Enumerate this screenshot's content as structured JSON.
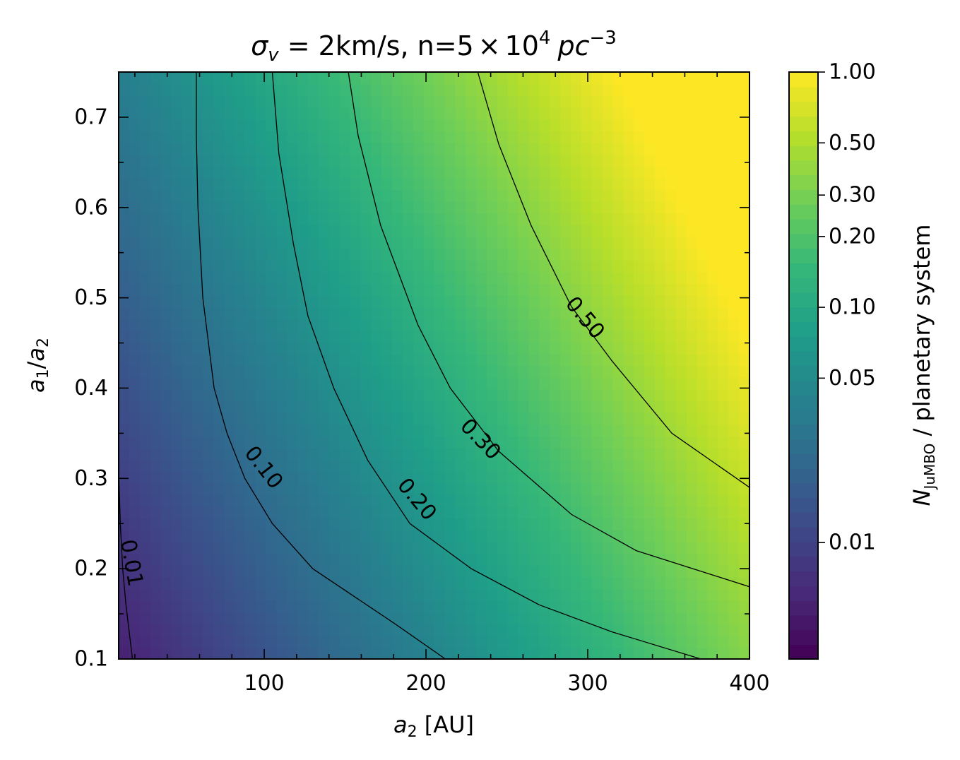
{
  "chart_data": {
    "type": "heatmap",
    "title": {
      "sigma_symbol": "σ",
      "sigma_sub": "v",
      "mid": " = 2km/s, n=5",
      "times": "×",
      "base": "10",
      "exp": "4",
      "unit": "pc",
      "unit_exp": "−3"
    },
    "xlabel": {
      "sym": "a",
      "sub": "2",
      "rest": " [AU]"
    },
    "ylabel": {
      "sym1": "a",
      "sub1": "1",
      "slash": "/",
      "sym2": "a",
      "sub2": "2"
    },
    "colorbar_label": {
      "sym": "N",
      "sub": "JuMBO",
      "rest": " / planetary system"
    },
    "xlim": [
      10,
      400
    ],
    "ylim": [
      0.1,
      0.75
    ],
    "x_ticks": [
      100,
      200,
      300,
      400
    ],
    "x_tick_labels": [
      "100",
      "200",
      "300",
      "400"
    ],
    "y_ticks": [
      0.1,
      0.2,
      0.3,
      0.4,
      0.5,
      0.6,
      0.7
    ],
    "y_tick_labels": [
      "0.1",
      "0.2",
      "0.3",
      "0.4",
      "0.5",
      "0.6",
      "0.7"
    ],
    "colorbar_scale": "log",
    "colorbar_range": [
      0.0032,
      1.0
    ],
    "colorbar_ticks": [
      1.0,
      0.5,
      0.3,
      0.2,
      0.1,
      0.05,
      0.01
    ],
    "colorbar_tick_labels": [
      "1.00",
      "0.50",
      "0.30",
      "0.20",
      "0.10",
      "0.05",
      "0.01"
    ],
    "colormap": [
      "#440154",
      "#482878",
      "#3e4989",
      "#31688e",
      "#26828e",
      "#1f9e89",
      "#35b779",
      "#6ece58",
      "#b5de2b",
      "#fde725"
    ],
    "contour_levels": [
      {
        "level": 0.01,
        "label": "0.01",
        "points": [
          [
            10,
            0.31
          ],
          [
            11,
            0.25
          ],
          [
            12.5,
            0.2
          ],
          [
            14.5,
            0.16
          ],
          [
            16.5,
            0.13
          ],
          [
            18.5,
            0.1
          ]
        ]
      },
      {
        "level": 0.1,
        "label": "0.10",
        "points": [
          [
            58,
            0.75
          ],
          [
            58,
            0.68
          ],
          [
            59,
            0.6
          ],
          [
            62,
            0.5
          ],
          [
            69,
            0.4
          ],
          [
            77,
            0.35
          ],
          [
            88,
            0.3
          ],
          [
            105,
            0.25
          ],
          [
            130,
            0.2
          ],
          [
            180,
            0.14
          ],
          [
            212,
            0.1
          ]
        ]
      },
      {
        "level": 0.2,
        "label": "0.20",
        "points": [
          [
            105,
            0.75
          ],
          [
            109,
            0.66
          ],
          [
            118,
            0.56
          ],
          [
            127,
            0.48
          ],
          [
            143,
            0.4
          ],
          [
            164,
            0.32
          ],
          [
            190,
            0.25
          ],
          [
            228,
            0.2
          ],
          [
            270,
            0.16
          ],
          [
            315,
            0.13
          ],
          [
            370,
            0.1
          ]
        ]
      },
      {
        "level": 0.3,
        "label": "0.30",
        "points": [
          [
            152,
            0.75
          ],
          [
            158,
            0.68
          ],
          [
            172,
            0.58
          ],
          [
            195,
            0.47
          ],
          [
            215,
            0.4
          ],
          [
            245,
            0.33
          ],
          [
            290,
            0.26
          ],
          [
            330,
            0.22
          ],
          [
            400,
            0.18
          ]
        ]
      },
      {
        "level": 0.5,
        "label": "0.50",
        "points": [
          [
            232,
            0.75
          ],
          [
            245,
            0.67
          ],
          [
            265,
            0.58
          ],
          [
            290,
            0.49
          ],
          [
            315,
            0.43
          ],
          [
            352,
            0.35
          ],
          [
            400,
            0.29
          ]
        ]
      }
    ]
  }
}
